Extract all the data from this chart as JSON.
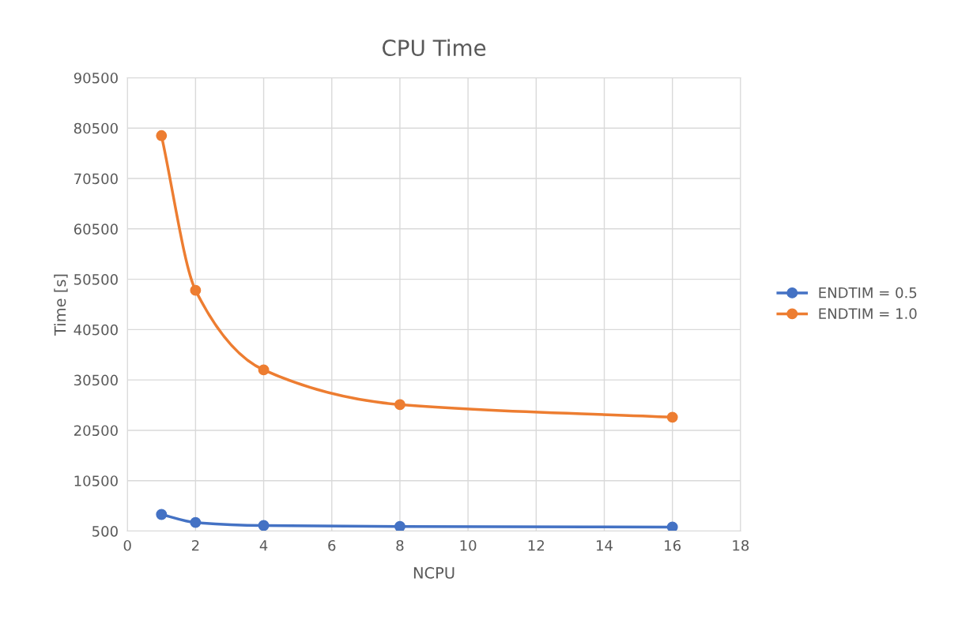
{
  "chart_data": {
    "type": "line",
    "title": "CPU Time",
    "xlabel": "NCPU",
    "ylabel": "Time [s]",
    "x": [
      1,
      2,
      4,
      8,
      16
    ],
    "series": [
      {
        "name": "ENDTIM = 0.5",
        "color": "#4472c4",
        "values": [
          3800,
          2200,
          1600,
          1400,
          1300
        ]
      },
      {
        "name": "ENDTIM = 1.0",
        "color": "#ed7d31",
        "values": [
          79000,
          48300,
          32500,
          25600,
          23100
        ]
      }
    ],
    "xlim": [
      0,
      18
    ],
    "xticks": [
      0,
      2,
      4,
      6,
      8,
      10,
      12,
      14,
      16,
      18
    ],
    "ylim": [
      500,
      90500
    ],
    "yticks": [
      500,
      10500,
      20500,
      30500,
      40500,
      50500,
      60500,
      70500,
      80500,
      90500
    ],
    "grid": true,
    "legend": "right",
    "marker": "circle",
    "line_style": "solid"
  }
}
